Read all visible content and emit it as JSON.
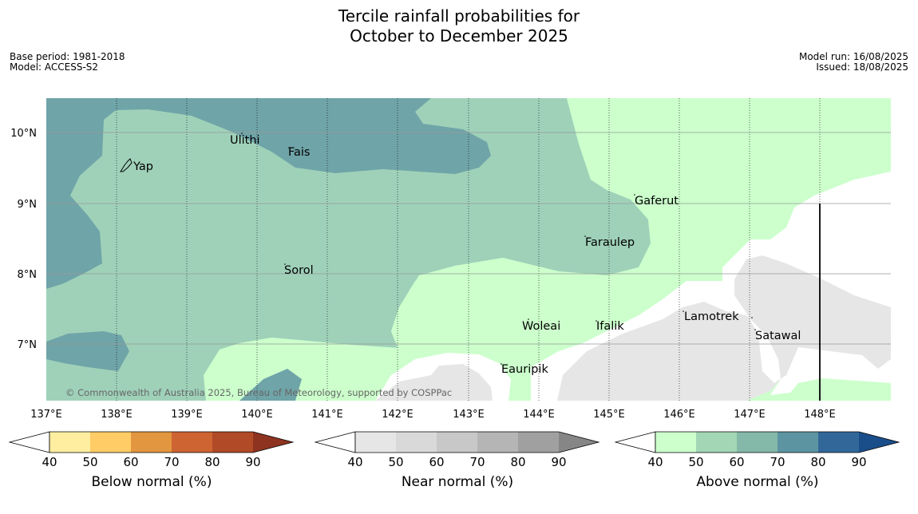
{
  "title": {
    "line1": "Tercile rainfall probabilities for",
    "line2": "October to December 2025"
  },
  "meta": {
    "base_period": "Base period: 1981-2018",
    "model": "Model: ACCESS-S2",
    "model_run": "Model run: 16/08/2025",
    "issued": "Issued: 18/08/2025"
  },
  "copyright": "© Commonwealth of Australia 2025, Bureau of Meteorology, supported by COSPPac",
  "axes": {
    "lon_ticks": [
      "137°E",
      "138°E",
      "139°E",
      "140°E",
      "141°E",
      "142°E",
      "143°E",
      "144°E",
      "145°E",
      "146°E",
      "147°E",
      "148°E"
    ],
    "lat_ticks": [
      "10°N",
      "9°N",
      "8°N",
      "7°N"
    ]
  },
  "places": [
    {
      "name": "Yap",
      "icon": "island-outline-icon"
    },
    {
      "name": "Ulithi"
    },
    {
      "name": "Fais"
    },
    {
      "name": "Gaferut"
    },
    {
      "name": "Faraulep"
    },
    {
      "name": "Sorol"
    },
    {
      "name": "Lamotrek"
    },
    {
      "name": "Satawal"
    },
    {
      "name": "Woleai"
    },
    {
      "name": "Ifalik"
    },
    {
      "name": "Eauripik"
    }
  ],
  "colorbars": [
    {
      "label": "Below normal (%)",
      "ticks": [
        "40",
        "50",
        "60",
        "70",
        "80",
        "90"
      ],
      "colors": [
        "#ffeea0",
        "#ffcc66",
        "#e2963f",
        "#cd6432",
        "#b04a27",
        "#8f3321"
      ]
    },
    {
      "label": "Near normal (%)",
      "ticks": [
        "40",
        "50",
        "60",
        "70",
        "80",
        "90"
      ],
      "colors": [
        "#e6e6e6",
        "#d9d9d9",
        "#c8c8c8",
        "#b5b5b5",
        "#a0a0a0",
        "#868686"
      ]
    },
    {
      "label": "Above normal (%)",
      "ticks": [
        "40",
        "50",
        "60",
        "70",
        "80",
        "90"
      ],
      "colors": [
        "#ccffcc",
        "#a3d6b4",
        "#84b9a9",
        "#5c95a1",
        "#326799",
        "#1a4e8a"
      ]
    }
  ]
}
